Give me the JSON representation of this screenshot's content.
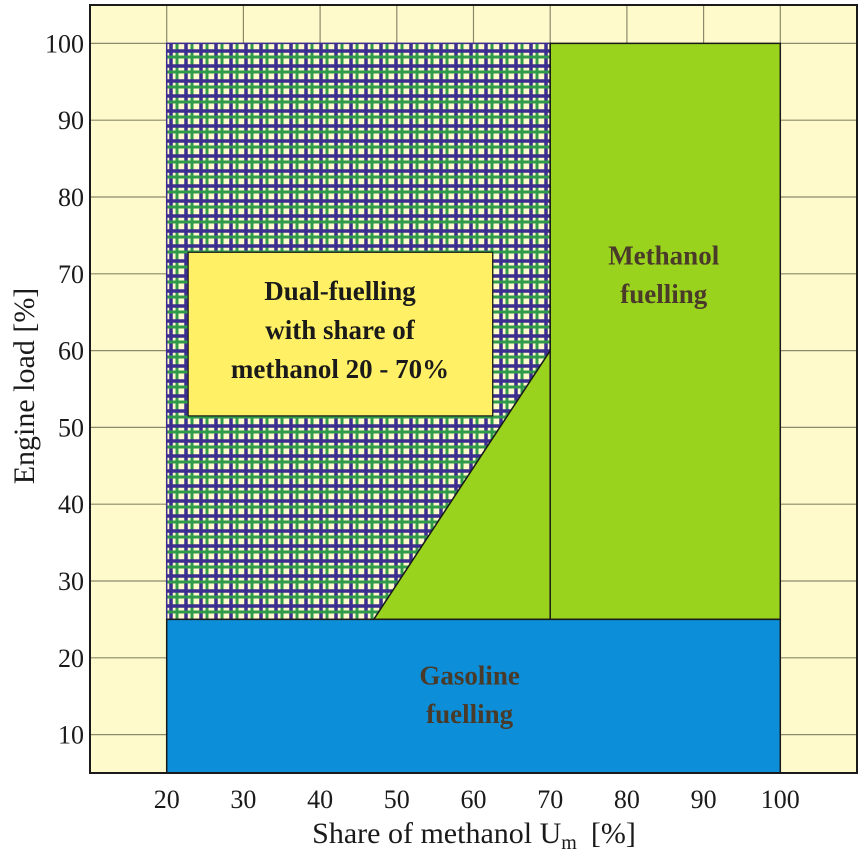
{
  "chart_data": {
    "type": "area",
    "title": "",
    "xlabel": "Share of methanol  U",
    "xlabel_subscript": "m",
    "xlabel_unit": "[%]",
    "ylabel": "Engine load  [%]",
    "xlim": [
      10,
      110
    ],
    "ylim": [
      5,
      105
    ],
    "x_ticks": [
      "20",
      "30",
      "40",
      "50",
      "60",
      "70",
      "80",
      "90",
      "100"
    ],
    "y_ticks": [
      "10",
      "20",
      "30",
      "40",
      "50",
      "60",
      "70",
      "80",
      "90",
      "100"
    ],
    "grid": true,
    "regions": [
      {
        "name": "Dual-fuelling",
        "label_lines": [
          "Dual-fuelling",
          "with share of",
          "methanol 20 - 70%"
        ],
        "shape": "hatched",
        "polygon": [
          [
            20,
            25
          ],
          [
            47,
            25
          ],
          [
            70,
            60
          ],
          [
            70,
            100
          ],
          [
            20,
            100
          ]
        ],
        "color": "#3b2e8f",
        "hatch_color": "#2f9a4a"
      },
      {
        "name": "Methanol fuelling",
        "label_lines": [
          "Methanol",
          "fuelling"
        ],
        "shape": "solid",
        "polygon": [
          [
            47,
            25
          ],
          [
            100,
            25
          ],
          [
            100,
            100
          ],
          [
            70,
            100
          ],
          [
            70,
            60
          ]
        ],
        "color": "#9ad31e"
      },
      {
        "name": "Gasoline fuelling",
        "label_lines": [
          "Gasoline",
          "fuelling"
        ],
        "shape": "solid",
        "polygon": [
          [
            20,
            5
          ],
          [
            100,
            5
          ],
          [
            100,
            25
          ],
          [
            20,
            25
          ]
        ],
        "color": "#0c8fd8"
      }
    ],
    "colors": {
      "background": "#fffacc",
      "dual_label_box": "#fff066",
      "grid": "#8a8a6a",
      "frame": "#1a1a1a"
    }
  }
}
